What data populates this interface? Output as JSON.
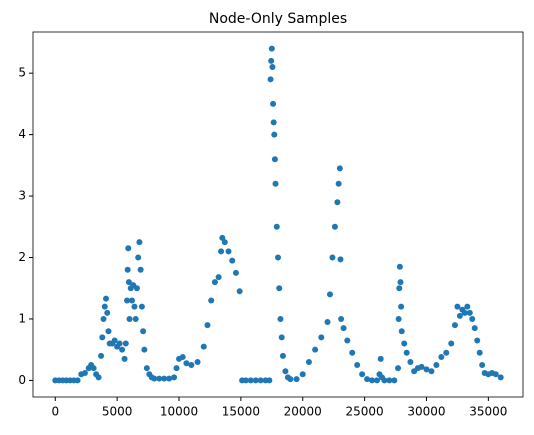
{
  "chart_data": {
    "type": "scatter",
    "title": "Node-Only Samples",
    "color": "#1f77b4",
    "x": [
      0,
      300,
      600,
      900,
      1200,
      1500,
      1800,
      2100,
      2400,
      2700,
      2900,
      3100,
      3300,
      3500,
      3700,
      3800,
      3900,
      4000,
      4100,
      4200,
      4300,
      4400,
      4600,
      4800,
      5000,
      5200,
      5400,
      5600,
      5700,
      5800,
      5850,
      5900,
      5950,
      6000,
      6100,
      6200,
      6300,
      6400,
      6500,
      6600,
      6700,
      6800,
      6900,
      7000,
      7100,
      7200,
      7400,
      7600,
      7800,
      8000,
      8400,
      8800,
      9200,
      9600,
      9800,
      10000,
      10300,
      10600,
      11000,
      11500,
      12000,
      12300,
      12600,
      12900,
      13200,
      13400,
      13500,
      13700,
      14000,
      14300,
      14600,
      14900,
      15100,
      15400,
      15800,
      16200,
      16600,
      17000,
      17300,
      17400,
      17450,
      17500,
      17550,
      17600,
      17650,
      17700,
      17750,
      17800,
      17900,
      18000,
      18100,
      18200,
      18300,
      18400,
      18600,
      18800,
      19000,
      19500,
      20000,
      20500,
      21000,
      21500,
      22000,
      22200,
      22400,
      22600,
      22800,
      22900,
      23000,
      23050,
      23100,
      23300,
      23600,
      24000,
      24400,
      24800,
      25200,
      25600,
      26000,
      26200,
      26300,
      26400,
      26600,
      27000,
      27400,
      27700,
      27750,
      27800,
      27850,
      27900,
      27950,
      28000,
      28200,
      28400,
      28700,
      29000,
      29300,
      29600,
      30000,
      30400,
      30800,
      31200,
      31600,
      32000,
      32300,
      32500,
      32700,
      32900,
      33100,
      33300,
      33500,
      33700,
      33900,
      34100,
      34300,
      34500,
      34700,
      35000,
      35300,
      35600,
      36000
    ],
    "values": [
      0,
      0,
      0,
      0,
      0,
      0,
      0,
      0.1,
      0.12,
      0.2,
      0.25,
      0.2,
      0.1,
      0.05,
      0.4,
      0.7,
      1.0,
      1.2,
      1.33,
      1.1,
      0.8,
      0.6,
      0.6,
      0.65,
      0.55,
      0.6,
      0.5,
      0.35,
      0.6,
      1.3,
      1.8,
      2.15,
      1.6,
      1.0,
      1.5,
      1.3,
      1.55,
      1.2,
      1.0,
      1.5,
      2.0,
      2.25,
      1.8,
      1.2,
      0.8,
      0.5,
      0.2,
      0.1,
      0.05,
      0.03,
      0.03,
      0.03,
      0.03,
      0.05,
      0.2,
      0.35,
      0.38,
      0.28,
      0.25,
      0.3,
      0.55,
      0.9,
      1.3,
      1.6,
      1.68,
      2.1,
      2.32,
      2.25,
      2.1,
      1.95,
      1.75,
      1.45,
      0,
      0,
      0,
      0,
      0,
      0,
      0,
      4.9,
      5.2,
      5.4,
      5.1,
      4.5,
      4.2,
      4.0,
      3.6,
      3.2,
      2.5,
      2.0,
      1.5,
      1.0,
      0.7,
      0.4,
      0.15,
      0.05,
      0.02,
      0.02,
      0.1,
      0.3,
      0.5,
      0.7,
      0.95,
      1.4,
      2.0,
      2.5,
      2.9,
      3.2,
      3.45,
      1.97,
      1.0,
      0.85,
      0.65,
      0.45,
      0.25,
      0.1,
      0.02,
      0,
      0,
      0.1,
      0.35,
      0.05,
      0,
      0,
      0,
      0.2,
      1.0,
      1.5,
      1.85,
      1.6,
      1.2,
      0.8,
      0.6,
      0.45,
      0.3,
      0.15,
      0.2,
      0.22,
      0.18,
      0.15,
      0.25,
      0.38,
      0.45,
      0.6,
      0.9,
      1.2,
      1.05,
      1.15,
      1.1,
      1.2,
      1.1,
      1.0,
      0.85,
      0.65,
      0.45,
      0.25,
      0.12,
      0.1,
      0.12,
      0.1,
      0.05
    ],
    "xlim": [
      -1800,
      37800
    ],
    "xticks": [
      0,
      5000,
      10000,
      15000,
      20000,
      25000,
      30000,
      35000
    ],
    "ylim": [
      -0.27,
      5.67
    ],
    "yticks": [
      0,
      1,
      2,
      3,
      4,
      5
    ]
  }
}
